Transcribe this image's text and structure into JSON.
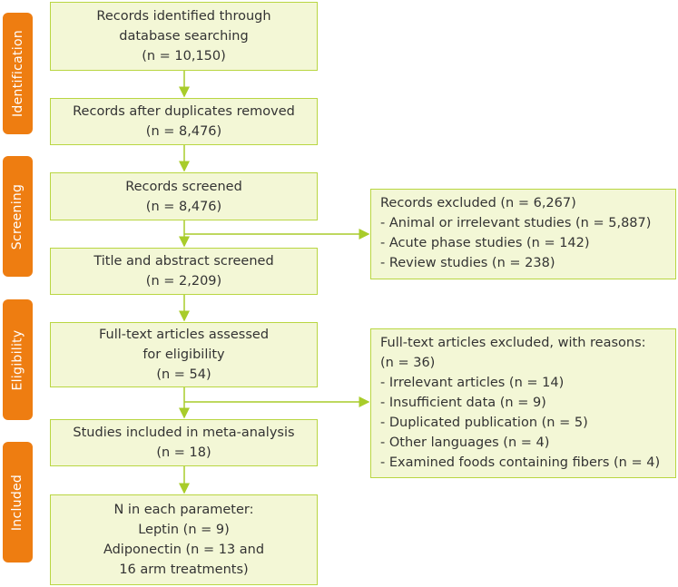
{
  "stages": [
    "Identification",
    "Screening",
    "Eligibility",
    "Included"
  ],
  "boxes": [
    [
      "Records identified through",
      "database searching",
      "(n = 10,150)"
    ],
    [
      "Records after duplicates removed",
      "(n = 8,476)"
    ],
    [
      "Records screened",
      "(n = 8,476)"
    ],
    [
      "Title and abstract screened",
      "(n = 2,209)"
    ],
    [
      "Full-text articles assessed",
      "for eligibility",
      "(n = 54)"
    ],
    [
      "Studies included in meta-analysis",
      "(n = 18)"
    ],
    [
      "N in each parameter:",
      "Leptin (n = 9)",
      "Adiponectin (n = 13 and",
      "16 arm treatments)"
    ]
  ],
  "excluded": [
    [
      "Records excluded (n = 6,267)",
      "- Animal or irrelevant studies (n = 5,887)",
      "- Acute phase studies (n = 142)",
      "- Review studies (n = 238)"
    ],
    [
      "Full-text articles excluded, with reasons:",
      "(n = 36)",
      "- Irrelevant articles (n = 14)",
      "- Insufficient data (n = 9)",
      "- Duplicated publication (n = 5)",
      "- Other languages (n = 4)",
      "- Examined foods containing fibers (n = 4)"
    ]
  ],
  "colors": {
    "stage": "#ee7d11",
    "box_fill": "#f3f7d6",
    "border": "#b9d642",
    "arrow": "#a8cc2a"
  }
}
